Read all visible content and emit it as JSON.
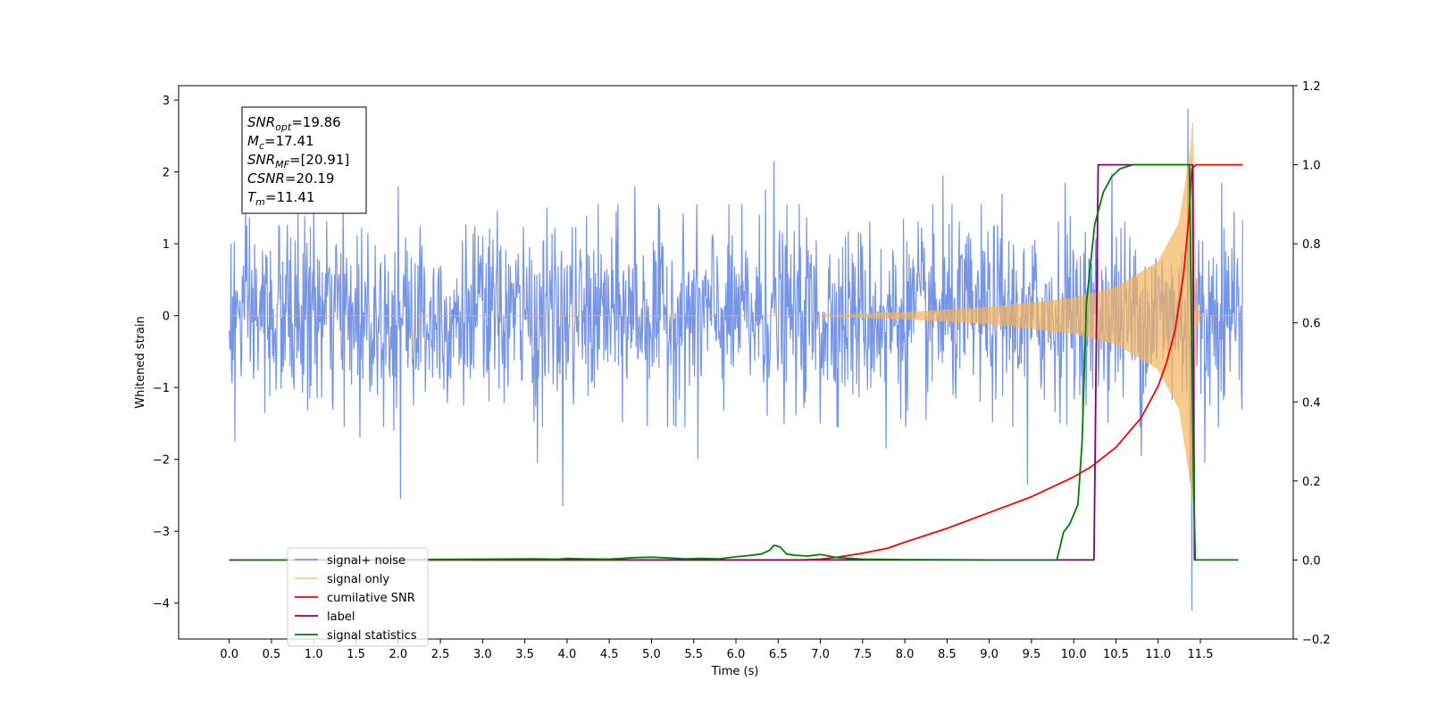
{
  "chart_data": {
    "type": "line",
    "xlabel": "Time (s)",
    "ylabel": "Whitened strain",
    "xlim": [
      -0.6,
      12.6
    ],
    "ylim": [
      -4.5,
      3.2
    ],
    "y2lim": [
      -0.2,
      1.2
    ],
    "x_ticks": [
      0.0,
      0.5,
      1.0,
      1.5,
      2.0,
      2.5,
      3.0,
      3.5,
      4.0,
      4.5,
      5.0,
      5.5,
      6.0,
      6.5,
      7.0,
      7.5,
      8.0,
      8.5,
      9.0,
      9.5,
      10.0,
      10.5,
      11.0,
      11.5
    ],
    "x_tick_labels": [
      "0.0",
      "0.5",
      "1.0",
      "1.5",
      "2.0",
      "2.5",
      "3.0",
      "3.5",
      "4.0",
      "4.5",
      "5.0",
      "5.5",
      "6.0",
      "6.5",
      "7.0",
      "7.5",
      "8.0",
      "8.5",
      "9.0",
      "9.5",
      "10.0",
      "10.5",
      "11.0",
      "11.5"
    ],
    "y_ticks": [
      3,
      2,
      1,
      0,
      -1,
      -2,
      -3,
      -4
    ],
    "y_tick_labels": [
      "3",
      "2",
      "1",
      "0",
      "−1",
      "−2",
      "−3",
      "−4"
    ],
    "y2_ticks": [
      1.2,
      1.0,
      0.8,
      0.6,
      0.4,
      0.2,
      0.0,
      -0.2
    ],
    "y2_tick_labels": [
      "1.2",
      "1.0",
      "0.8",
      "0.6",
      "0.4",
      "0.2",
      "0.0",
      "−0.2"
    ],
    "grid": false,
    "legend_placement": "lower-left",
    "info_box": [
      {
        "base": "SNR",
        "sub": "opt",
        "value": "=19.86"
      },
      {
        "base": "M",
        "sub": "c",
        "value": "=17.41"
      },
      {
        "base": "SNR",
        "sub": "MF",
        "value": "=[20.91]"
      },
      {
        "base": "CSNR",
        "sub": "",
        "value": "=20.19"
      },
      {
        "base": "T",
        "sub": "m",
        "value": "=11.41"
      }
    ],
    "series": [
      {
        "name": "signal+ noise",
        "axis": "left",
        "color": "#7795e7",
        "x_range": [
          0.0,
          12.0
        ],
        "noise_sigma": 0.62,
        "noise_peaks": [
          [
            0.07,
            -1.75
          ],
          [
            0.42,
            -1.35
          ],
          [
            1.0,
            1.55
          ],
          [
            1.55,
            -1.7
          ],
          [
            1.95,
            -1.6
          ],
          [
            2.0,
            1.8
          ],
          [
            2.03,
            -2.55
          ],
          [
            3.65,
            -2.05
          ],
          [
            3.95,
            -2.65
          ],
          [
            4.8,
            1.8
          ],
          [
            5.55,
            -2.0
          ],
          [
            6.35,
            1.75
          ],
          [
            6.45,
            2.15
          ],
          [
            7.0,
            -1.5
          ],
          [
            7.78,
            -1.85
          ],
          [
            8.45,
            1.95
          ],
          [
            9.15,
            1.7
          ],
          [
            9.45,
            -2.35
          ],
          [
            9.9,
            1.85
          ],
          [
            10.45,
            1.98
          ],
          [
            10.8,
            -1.95
          ],
          [
            11.35,
            2.88
          ],
          [
            11.38,
            -2.3
          ],
          [
            11.4,
            -4.1
          ],
          [
            11.55,
            -2.05
          ],
          [
            11.75,
            1.85
          ],
          [
            11.9,
            1.45
          ]
        ]
      },
      {
        "name": "signal only",
        "axis": "left",
        "color": "#f5b55b",
        "opacity": 0.7,
        "chirp": {
          "x_range": [
            0.0,
            12.0
          ],
          "t_merger": 11.41,
          "envelope": [
            [
              7.0,
              0.0
            ],
            [
              7.5,
              0.03
            ],
            [
              8.0,
              0.05
            ],
            [
              9.0,
              0.12
            ],
            [
              10.0,
              0.25
            ],
            [
              10.5,
              0.4
            ],
            [
              11.0,
              0.75
            ],
            [
              11.25,
              1.3
            ],
            [
              11.38,
              2.3
            ],
            [
              11.41,
              2.7
            ],
            [
              11.45,
              0.2
            ],
            [
              11.5,
              0.0
            ]
          ],
          "post_merger_value": 0.0
        }
      },
      {
        "name": "cumilative SNR",
        "axis": "right",
        "color": "#ff0000",
        "x": [
          0.0,
          6.8,
          7.0,
          7.2,
          7.5,
          7.8,
          8.0,
          8.5,
          9.0,
          9.5,
          10.0,
          10.2,
          10.5,
          10.8,
          11.0,
          11.1,
          11.2,
          11.3,
          11.36,
          11.4,
          11.45,
          12.0
        ],
        "y": [
          0.0,
          0.0,
          0.002,
          0.007,
          0.017,
          0.03,
          0.045,
          0.08,
          0.12,
          0.16,
          0.21,
          0.235,
          0.285,
          0.36,
          0.44,
          0.5,
          0.58,
          0.72,
          0.86,
          0.99,
          1.0,
          1.0
        ]
      },
      {
        "name": "label",
        "axis": "right",
        "color": "#800080",
        "x": [
          0.0,
          10.24,
          10.29,
          11.41,
          11.43,
          11.44
        ],
        "y": [
          0.0,
          0.0,
          1.0,
          1.0,
          0.0,
          0.0
        ]
      },
      {
        "name": "signal statistics",
        "axis": "right",
        "color": "#008000",
        "x": [
          0.0,
          1.5,
          2.0,
          3.0,
          3.6,
          3.9,
          4.0,
          4.2,
          4.5,
          4.8,
          5.0,
          5.2,
          5.4,
          5.6,
          5.8,
          6.0,
          6.1,
          6.3,
          6.4,
          6.45,
          6.52,
          6.6,
          6.7,
          6.85,
          7.0,
          7.2,
          7.5,
          8.0,
          9.0,
          9.8,
          9.88,
          9.95,
          10.05,
          10.1,
          10.15,
          10.25,
          10.35,
          10.45,
          10.55,
          10.7,
          11.0,
          11.37,
          11.42,
          11.44,
          11.95
        ],
        "y": [
          0.0,
          0.0,
          0.001,
          0.002,
          0.003,
          0.002,
          0.004,
          0.003,
          0.002,
          0.006,
          0.007,
          0.005,
          0.003,
          0.004,
          0.003,
          0.008,
          0.01,
          0.015,
          0.025,
          0.037,
          0.033,
          0.015,
          0.012,
          0.01,
          0.014,
          0.006,
          0.002,
          0.001,
          0.0,
          0.0,
          0.07,
          0.09,
          0.14,
          0.3,
          0.65,
          0.85,
          0.93,
          0.97,
          0.99,
          1.0,
          1.0,
          1.0,
          0.2,
          0.0,
          0.0
        ]
      }
    ]
  }
}
